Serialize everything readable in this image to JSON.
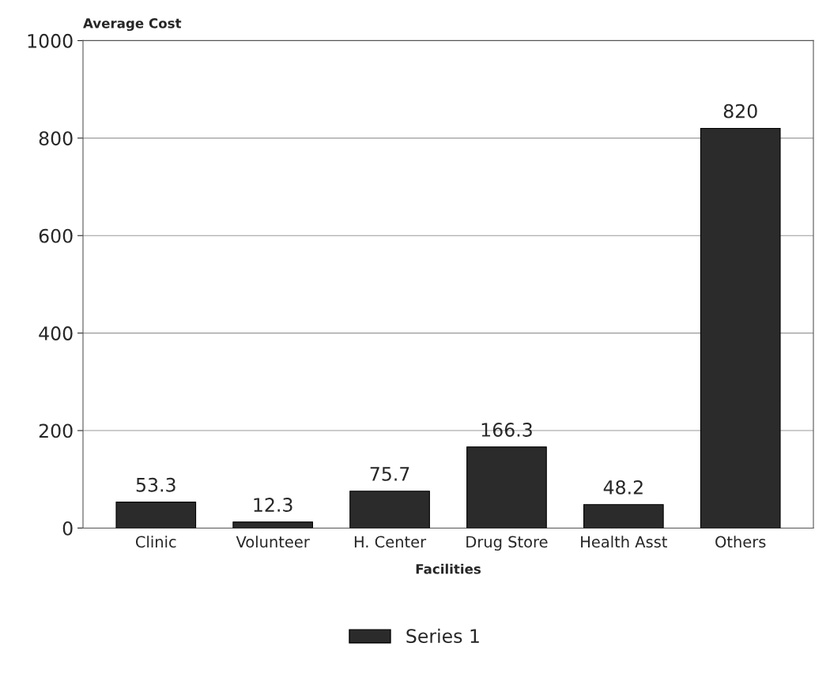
{
  "chart_data": {
    "type": "bar",
    "ylabel": "Average Cost",
    "xlabel": "Facilities",
    "categories": [
      "Clinic",
      "Volunteer",
      "H. Center",
      "Drug Store",
      "Health Asst",
      "Others"
    ],
    "series": [
      {
        "name": "Series 1",
        "color": "#2b2b2b",
        "values": [
          53.3,
          12.3,
          75.7,
          166.3,
          48.2,
          820
        ]
      }
    ],
    "ylim": [
      0,
      1000
    ],
    "yticks": [
      0,
      200,
      400,
      600,
      800,
      1000
    ],
    "data_labels": true,
    "grid": "y",
    "legend": "bottom"
  }
}
